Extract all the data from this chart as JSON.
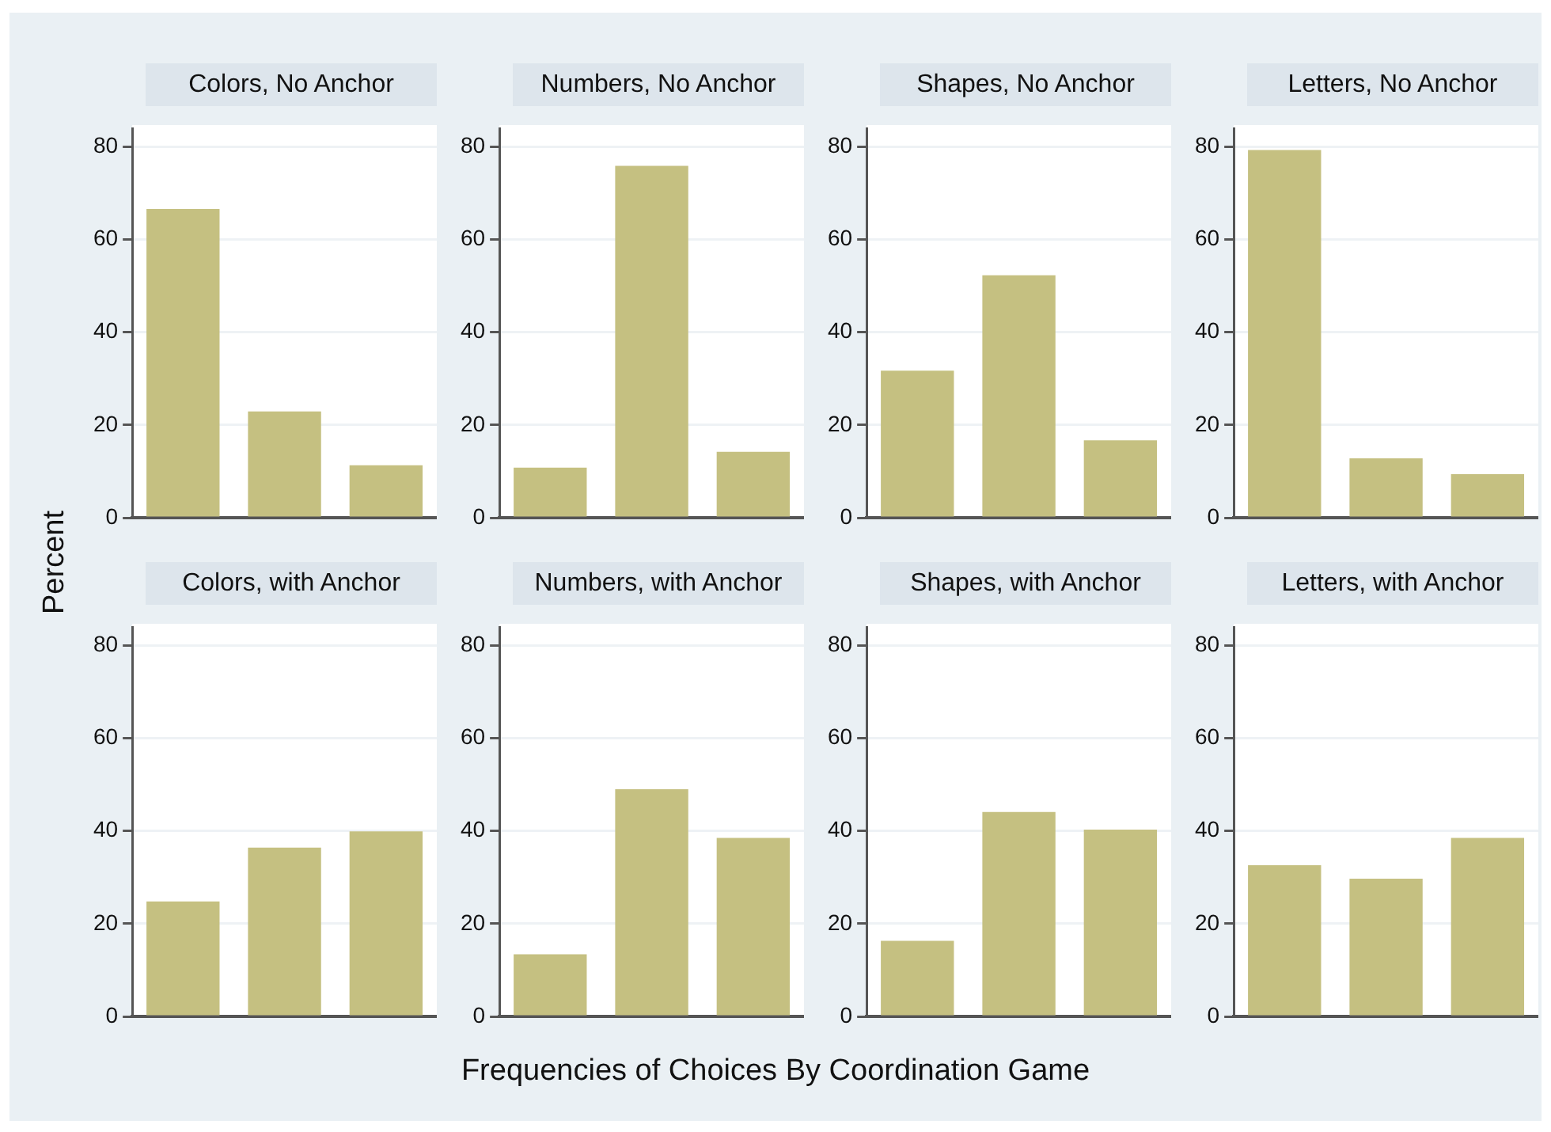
{
  "chart_data": [
    {
      "type": "bar",
      "title": "Colors, No Anchor",
      "ylabel": "Percent",
      "xlabel": "Frequencies of Choices By Coordination Game",
      "categories": [
        null,
        null,
        null
      ],
      "values": [
        66.6,
        22.9,
        11.3
      ],
      "color": "#c5c081",
      "ylim": [
        0,
        84
      ],
      "yticks": [
        0,
        20,
        40,
        60,
        80
      ],
      "grid": "y",
      "tick_labels": "y"
    },
    {
      "type": "bar",
      "title": "Numbers, No Anchor",
      "categories": [
        null,
        null,
        null
      ],
      "values": [
        10.8,
        75.9,
        14.2
      ],
      "color": "#c5c081",
      "ylim": [
        0,
        84
      ],
      "yticks": [
        0,
        20,
        40,
        60,
        80
      ],
      "grid": "y",
      "tick_labels": "y"
    },
    {
      "type": "bar",
      "title": "Shapes, No Anchor",
      "categories": [
        null,
        null,
        null
      ],
      "values": [
        31.7,
        52.3,
        16.7
      ],
      "color": "#c5c081",
      "ylim": [
        0,
        84
      ],
      "yticks": [
        0,
        20,
        40,
        60,
        80
      ],
      "grid": "y",
      "tick_labels": "y"
    },
    {
      "type": "bar",
      "title": "Letters, No Anchor",
      "categories": [
        null,
        null,
        null
      ],
      "values": [
        79.3,
        12.8,
        9.4
      ],
      "color": "#c5c081",
      "ylim": [
        0,
        84
      ],
      "yticks": [
        0,
        20,
        40,
        60,
        80
      ],
      "grid": "y",
      "tick_labels": "y"
    },
    {
      "type": "bar",
      "title": "Colors, with Anchor",
      "categories": [
        null,
        null,
        null
      ],
      "values": [
        24.8,
        36.4,
        39.9
      ],
      "color": "#c5c081",
      "ylim": [
        0,
        84
      ],
      "yticks": [
        0,
        20,
        40,
        60,
        80
      ],
      "grid": "y",
      "tick_labels": "y"
    },
    {
      "type": "bar",
      "title": "Numbers, with Anchor",
      "categories": [
        null,
        null,
        null
      ],
      "values": [
        13.4,
        49.0,
        38.5
      ],
      "color": "#c5c081",
      "ylim": [
        0,
        84
      ],
      "yticks": [
        0,
        20,
        40,
        60,
        80
      ],
      "grid": "y",
      "tick_labels": "y"
    },
    {
      "type": "bar",
      "title": "Shapes, with Anchor",
      "categories": [
        null,
        null,
        null
      ],
      "values": [
        16.3,
        44.1,
        40.3
      ],
      "color": "#c5c081",
      "ylim": [
        0,
        84
      ],
      "yticks": [
        0,
        20,
        40,
        60,
        80
      ],
      "grid": "y",
      "tick_labels": "y"
    },
    {
      "type": "bar",
      "title": "Letters, with Anchor",
      "categories": [
        null,
        null,
        null
      ],
      "values": [
        32.6,
        29.7,
        38.5
      ],
      "color": "#c5c081",
      "ylim": [
        0,
        84
      ],
      "yticks": [
        0,
        20,
        40,
        60,
        80
      ],
      "grid": "y",
      "tick_labels": "y"
    }
  ]
}
